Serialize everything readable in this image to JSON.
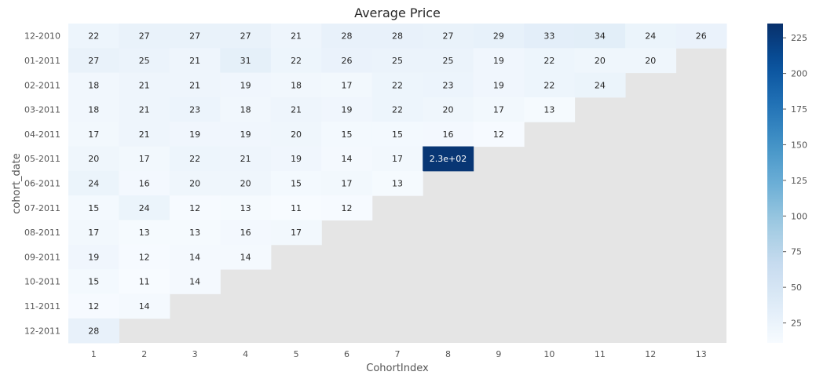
{
  "chart_data": {
    "type": "heatmap",
    "title": "Average Price",
    "xlabel": "CohortIndex",
    "ylabel": "cohort_date",
    "x_categories": [
      "1",
      "2",
      "3",
      "4",
      "5",
      "6",
      "7",
      "8",
      "9",
      "10",
      "11",
      "12",
      "13"
    ],
    "y_categories": [
      "12-2010",
      "01-2011",
      "02-2011",
      "03-2011",
      "04-2011",
      "05-2011",
      "06-2011",
      "07-2011",
      "08-2011",
      "09-2011",
      "10-2011",
      "11-2011",
      "12-2011"
    ],
    "values": [
      [
        22,
        27,
        27,
        27,
        21,
        28,
        28,
        27,
        29,
        33,
        34,
        24,
        26
      ],
      [
        27,
        25,
        21,
        31,
        22,
        26,
        25,
        25,
        19,
        22,
        20,
        20,
        null
      ],
      [
        18,
        21,
        21,
        19,
        18,
        17,
        22,
        23,
        19,
        22,
        24,
        null,
        null
      ],
      [
        18,
        21,
        23,
        18,
        21,
        19,
        22,
        20,
        17,
        13,
        null,
        null,
        null
      ],
      [
        17,
        21,
        19,
        19,
        20,
        15,
        15,
        16,
        12,
        null,
        null,
        null,
        null
      ],
      [
        20,
        17,
        22,
        21,
        19,
        14,
        17,
        230,
        null,
        null,
        null,
        null,
        null
      ],
      [
        24,
        16,
        20,
        20,
        15,
        17,
        13,
        null,
        null,
        null,
        null,
        null,
        null
      ],
      [
        15,
        24,
        12,
        13,
        11,
        12,
        null,
        null,
        null,
        null,
        null,
        null,
        null
      ],
      [
        17,
        13,
        13,
        16,
        17,
        null,
        null,
        null,
        null,
        null,
        null,
        null,
        null
      ],
      [
        19,
        12,
        14,
        14,
        null,
        null,
        null,
        null,
        null,
        null,
        null,
        null,
        null
      ],
      [
        15,
        11,
        14,
        null,
        null,
        null,
        null,
        null,
        null,
        null,
        null,
        null,
        null
      ],
      [
        12,
        14,
        null,
        null,
        null,
        null,
        null,
        null,
        null,
        null,
        null,
        null,
        null
      ],
      [
        28,
        null,
        null,
        null,
        null,
        null,
        null,
        null,
        null,
        null,
        null,
        null,
        null
      ]
    ],
    "annotations": [
      [
        "22",
        "27",
        "27",
        "27",
        "21",
        "28",
        "28",
        "27",
        "29",
        "33",
        "34",
        "24",
        "26"
      ],
      [
        "27",
        "25",
        "21",
        "31",
        "22",
        "26",
        "25",
        "25",
        "19",
        "22",
        "20",
        "20",
        ""
      ],
      [
        "18",
        "21",
        "21",
        "19",
        "18",
        "17",
        "22",
        "23",
        "19",
        "22",
        "24",
        "",
        ""
      ],
      [
        "18",
        "21",
        "23",
        "18",
        "21",
        "19",
        "22",
        "20",
        "17",
        "13",
        "",
        "",
        ""
      ],
      [
        "17",
        "21",
        "19",
        "19",
        "20",
        "15",
        "15",
        "16",
        "12",
        "",
        "",
        "",
        ""
      ],
      [
        "20",
        "17",
        "22",
        "21",
        "19",
        "14",
        "17",
        "2.3e+02",
        "",
        "",
        "",
        "",
        ""
      ],
      [
        "24",
        "16",
        "20",
        "20",
        "15",
        "17",
        "13",
        "",
        "",
        "",
        "",
        "",
        ""
      ],
      [
        "15",
        "24",
        "12",
        "13",
        "11",
        "12",
        "",
        "",
        "",
        "",
        "",
        "",
        ""
      ],
      [
        "17",
        "13",
        "13",
        "16",
        "17",
        "",
        "",
        "",
        "",
        "",
        "",
        "",
        ""
      ],
      [
        "19",
        "12",
        "14",
        "14",
        "",
        "",
        "",
        "",
        "",
        "",
        "",
        "",
        ""
      ],
      [
        "15",
        "11",
        "14",
        "",
        "",
        "",
        "",
        "",
        "",
        "",
        "",
        "",
        ""
      ],
      [
        "12",
        "14",
        "",
        "",
        "",
        "",
        "",
        "",
        "",
        "",
        "",
        "",
        ""
      ],
      [
        "28",
        "",
        "",
        "",
        "",
        "",
        "",
        "",
        "",
        "",
        "",
        "",
        ""
      ]
    ],
    "colormap": "Blues",
    "color_range": [
      11,
      235
    ],
    "colorbar_ticks": [
      "25",
      "50",
      "75",
      "100",
      "125",
      "150",
      "175",
      "200",
      "225"
    ],
    "missing_color": "#e5e5e5",
    "grid": false
  }
}
